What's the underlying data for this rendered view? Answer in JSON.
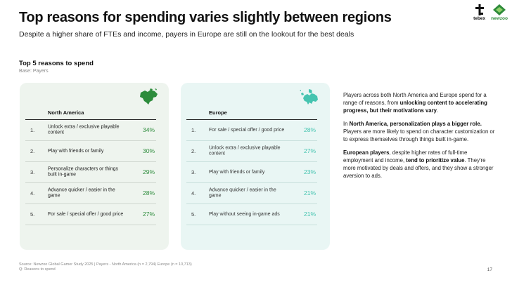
{
  "header": {
    "title": "Top reasons for spending varies slightly between regions",
    "subtitle": "Despite a higher share of FTEs and income, payers in Europe are still on the lookout for the best deals"
  },
  "logos": {
    "tebex": "tebex",
    "newzoo": "newzoo"
  },
  "section": {
    "title": "Top 5 reasons to spend",
    "base": "Base: Payers"
  },
  "panels": {
    "na": {
      "region": "North America",
      "color": "#2d8c3c",
      "rows": [
        {
          "num": "1.",
          "text": "Unlock extra / exclusive playable content",
          "pct": "34%"
        },
        {
          "num": "2.",
          "text": "Play with friends or family",
          "pct": "30%"
        },
        {
          "num": "3.",
          "text": "Personalize characters or things built in-game",
          "pct": "29%"
        },
        {
          "num": "4.",
          "text": "Advance quicker / easier in the game",
          "pct": "28%"
        },
        {
          "num": "5.",
          "text": "For sale / special offer / good price",
          "pct": "27%"
        }
      ]
    },
    "eu": {
      "region": "Europe",
      "color": "#45c4b0",
      "rows": [
        {
          "num": "1.",
          "text": "For sale / special offer / good price",
          "pct": "28%"
        },
        {
          "num": "2.",
          "text": "Unlock extra / exclusive playable content",
          "pct": "27%"
        },
        {
          "num": "3.",
          "text": "Play with friends or family",
          "pct": "23%"
        },
        {
          "num": "4.",
          "text": "Advance quicker / easier in the game",
          "pct": "21%"
        },
        {
          "num": "5.",
          "text": "Play without seeing in-game ads",
          "pct": "21%"
        }
      ]
    }
  },
  "sidebar": {
    "p1": {
      "a": "Players across both North America and Europe spend for a range of reasons, from ",
      "b": "unlocking content to accelerating progress, but their motivations vary",
      "c": "."
    },
    "p2": {
      "a": "In ",
      "b": "North America, personalization plays a bigger role.",
      "c": " Players are more likely to spend on character customization or to express themselves through things built in-game."
    },
    "p3": {
      "a": "European players",
      "b": ", despite higher rates of full-time employment and income, ",
      "c": "tend to prioritize value",
      "d": ". They're more motivated by deals and offers, and they show a stronger aversion to ads."
    }
  },
  "footer": {
    "source": "Source: Newzoo Global Gamer Study 2025 | Payers - North America (n = 2,794) Europe (n = 10,713)",
    "question": "Q: Reasons to spend",
    "page": "17"
  }
}
